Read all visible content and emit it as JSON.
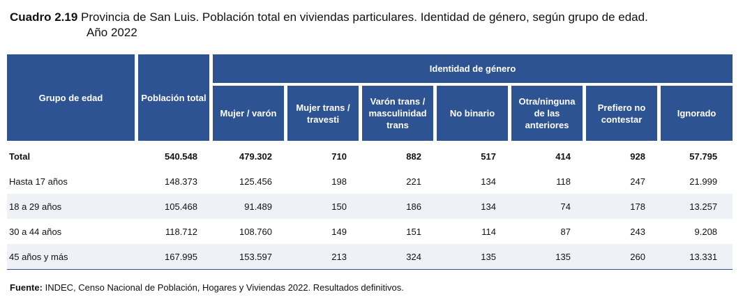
{
  "title": {
    "number": "Cuadro 2.19",
    "line1": "Provincia de San Luis. Población total en viviendas particulares. Identidad de género, según grupo de edad.",
    "line2": "Año 2022"
  },
  "table": {
    "col_age": "Grupo de edad",
    "col_pop": "Población total",
    "group_header": "Identidad de género",
    "sub_headers": [
      "Mujer / varón",
      "Mujer trans / travesti",
      "Varón trans / masculinidad trans",
      "No binario",
      "Otra/ninguna de las anteriores",
      "Prefiero no contestar",
      "Ignorado"
    ],
    "rows": [
      {
        "label": "Total",
        "values": [
          "540.548",
          "479.302",
          "710",
          "882",
          "517",
          "414",
          "928",
          "57.795"
        ]
      },
      {
        "label": "Hasta 17 años",
        "values": [
          "148.373",
          "125.456",
          "198",
          "221",
          "134",
          "118",
          "247",
          "21.999"
        ]
      },
      {
        "label": "18 a 29 años",
        "values": [
          "105.468",
          "91.489",
          "150",
          "186",
          "134",
          "74",
          "178",
          "13.257"
        ]
      },
      {
        "label": "30 a 44 años",
        "values": [
          "118.712",
          "108.760",
          "149",
          "151",
          "114",
          "87",
          "243",
          "9.208"
        ]
      },
      {
        "label": "45 años y más",
        "values": [
          "167.995",
          "153.597",
          "213",
          "324",
          "135",
          "135",
          "260",
          "13.331"
        ]
      }
    ]
  },
  "footer": {
    "label": "Fuente:",
    "text": "INDEC, Censo Nacional de Población, Hogares y Viviendas 2022. Resultados definitivos."
  },
  "colors": {
    "header_bg": "#2e5392",
    "row_shade": "#eef1f6"
  }
}
